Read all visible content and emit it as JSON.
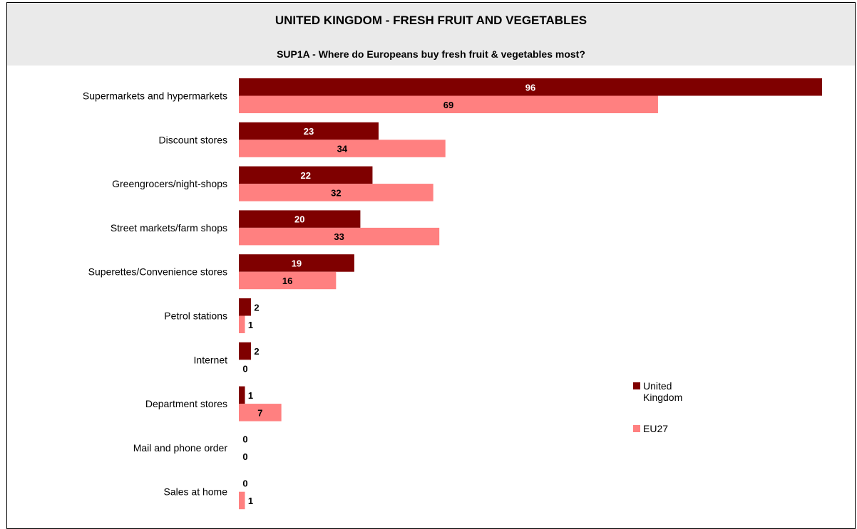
{
  "header": {
    "title": "UNITED KINGDOM - FRESH FRUIT AND VEGETABLES",
    "subtitle": "SUP1A - Where do Europeans buy fresh fruit & vegetables most?"
  },
  "legend": {
    "items": [
      {
        "label": "United Kingdom",
        "color": "#7f0000"
      },
      {
        "label": "EU27",
        "color": "#ff8080"
      }
    ]
  },
  "chart_data": {
    "type": "bar",
    "orientation": "horizontal",
    "title": "UNITED KINGDOM - FRESH FRUIT AND VEGETABLES",
    "subtitle": "SUP1A - Where do Europeans buy fresh fruit & vegetables most?",
    "categories": [
      "Supermarkets and hypermarkets",
      "Discount stores",
      "Greengrocers/night-shops",
      "Street markets/farm shops",
      "Superettes/Convenience stores",
      "Petrol stations",
      "Internet",
      "Department stores",
      "Mail and phone order",
      "Sales at home"
    ],
    "series": [
      {
        "name": "United Kingdom",
        "color": "#7f0000",
        "values": [
          96,
          23,
          22,
          20,
          19,
          2,
          2,
          1,
          0,
          0
        ]
      },
      {
        "name": "EU27",
        "color": "#ff8080",
        "values": [
          69,
          34,
          32,
          33,
          16,
          1,
          0,
          7,
          0,
          1
        ]
      }
    ],
    "xlim": [
      0,
      96
    ],
    "grid": false,
    "legend_position": "right"
  }
}
